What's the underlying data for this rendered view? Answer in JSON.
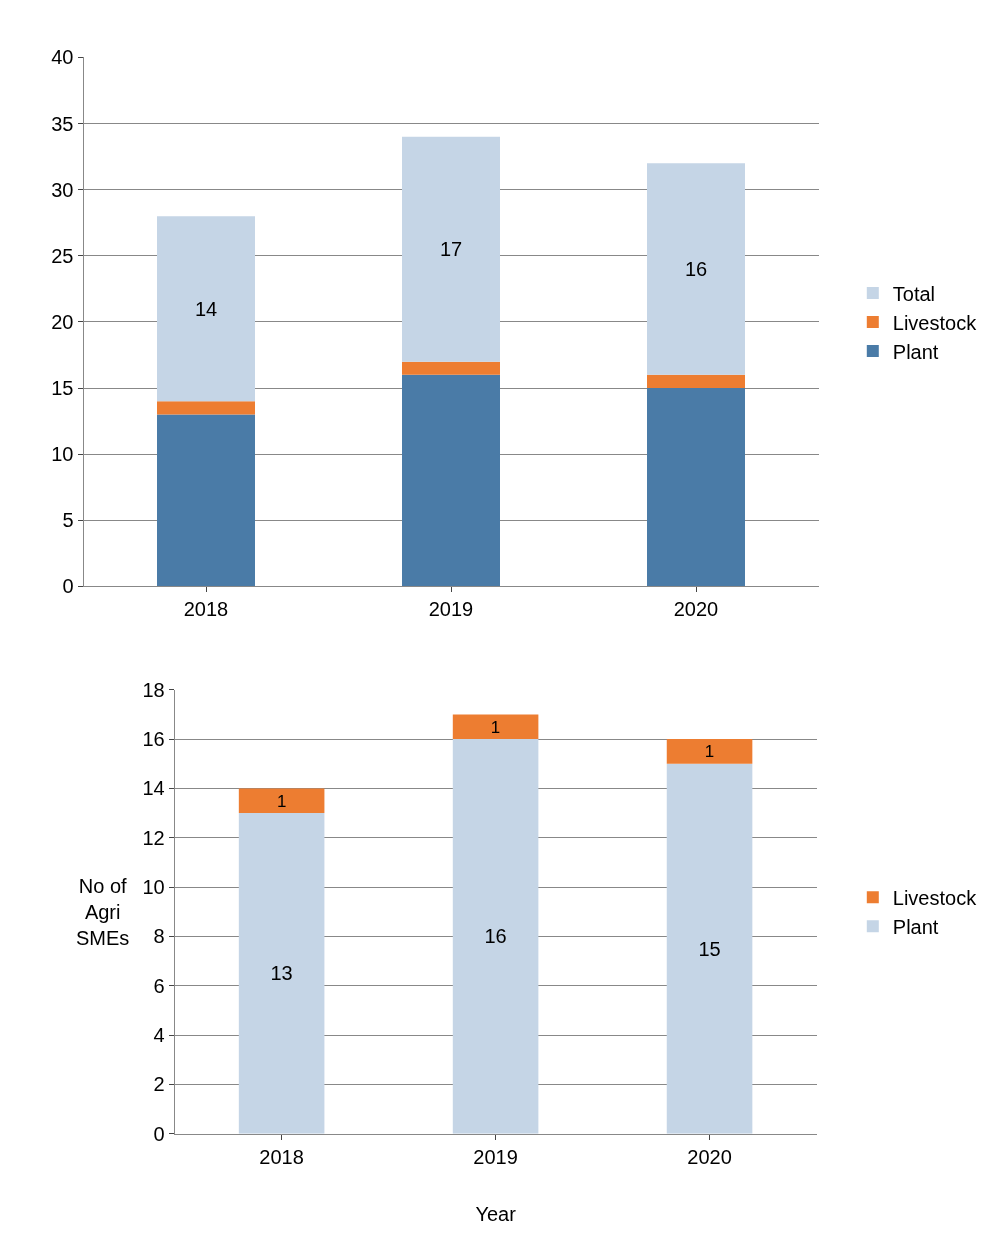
{
  "chart_data": [
    {
      "type": "bar",
      "stacked": true,
      "categories": [
        "2018",
        "2019",
        "2020"
      ],
      "ylim": [
        0,
        40
      ],
      "yticks": [
        0,
        5,
        10,
        15,
        20,
        25,
        30,
        35,
        40
      ],
      "grid": "y",
      "legend": "right",
      "series": [
        {
          "name": "Plant",
          "color": "#4a7ba7",
          "values": [
            13,
            16,
            15
          ]
        },
        {
          "name": "Livestock",
          "color": "#ed7d31",
          "values": [
            1,
            1,
            1
          ]
        },
        {
          "name": "Total",
          "color": "#c5d5e6",
          "values": [
            14,
            17,
            16
          ],
          "value_labels": [
            "14",
            "17",
            "16"
          ]
        }
      ]
    },
    {
      "type": "bar",
      "stacked": true,
      "categories": [
        "2018",
        "2019",
        "2020"
      ],
      "ylim": [
        0,
        18
      ],
      "yticks": [
        0,
        2,
        4,
        6,
        8,
        10,
        12,
        14,
        16,
        18
      ],
      "grid": "y",
      "legend": "right",
      "data_labels": true,
      "xlabel": "Year",
      "ylabel": "No of\nAgri\nSMEs",
      "series": [
        {
          "name": "Plant",
          "color": "#c5d5e6",
          "values": [
            13,
            16,
            15
          ]
        },
        {
          "name": "Livestock",
          "color": "#ed7d31",
          "values": [
            1,
            1,
            1
          ]
        }
      ]
    }
  ]
}
